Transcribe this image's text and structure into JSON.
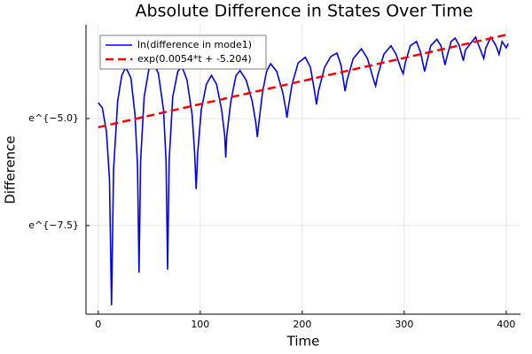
{
  "chart_data": {
    "type": "line",
    "title": "Absolute Difference in States Over Time",
    "xlabel": "Time",
    "ylabel": "Difference",
    "xlim": [
      -12,
      414
    ],
    "xticks": [
      0,
      100,
      200,
      300,
      400
    ],
    "ylim": [
      -9.57,
      -2.81
    ],
    "yticks": [
      {
        "value": -5.0,
        "label": "e^{−5.0}"
      },
      {
        "value": -7.5,
        "label": "e^{−7.5}"
      }
    ],
    "grid": true,
    "legend": "top-left",
    "series": [
      {
        "name": "ln(difference in mode1)",
        "color": "#0000ff",
        "dash": false,
        "x": [
          0,
          4,
          8,
          11,
          13,
          15,
          19,
          23,
          27,
          32,
          36,
          38.5,
          40,
          41.5,
          45,
          50,
          54,
          59,
          64,
          66.5,
          68,
          69.5,
          73,
          78,
          82,
          87,
          92,
          94.5,
          96,
          97.5,
          101,
          106,
          111,
          116,
          121,
          124,
          125,
          126,
          130,
          135,
          139,
          145,
          151,
          154.5,
          156,
          157.5,
          161,
          165,
          169,
          175,
          181,
          184,
          185,
          186,
          190,
          196,
          203,
          208,
          212,
          214,
          216,
          222,
          228,
          234,
          238,
          241,
          242,
          244,
          250,
          258,
          264,
          270,
          272,
          274,
          280,
          287,
          292,
          297,
          299,
          301,
          306,
          312,
          316,
          320,
          322,
          326,
          332,
          336,
          340,
          342,
          346,
          350,
          354,
          358,
          360,
          365,
          370,
          374,
          378,
          380,
          385,
          390,
          393,
          396,
          400,
          402
        ],
        "values": [
          -4.63,
          -4.75,
          -5.3,
          -6.4,
          -9.36,
          -6.2,
          -4.6,
          -4.0,
          -3.8,
          -4.05,
          -4.9,
          -6.1,
          -8.6,
          -6.0,
          -4.5,
          -3.8,
          -3.68,
          -3.95,
          -4.8,
          -6.0,
          -8.53,
          -6.0,
          -4.5,
          -3.9,
          -3.78,
          -4.1,
          -4.9,
          -5.8,
          -6.65,
          -5.8,
          -4.8,
          -4.2,
          -3.99,
          -4.2,
          -4.8,
          -5.4,
          -5.91,
          -5.4,
          -4.6,
          -4.0,
          -3.88,
          -4.1,
          -4.6,
          -5.1,
          -5.43,
          -5.1,
          -4.4,
          -3.9,
          -3.72,
          -3.9,
          -4.4,
          -4.8,
          -4.98,
          -4.8,
          -4.2,
          -3.7,
          -3.57,
          -3.8,
          -4.35,
          -4.67,
          -4.35,
          -3.8,
          -3.55,
          -3.47,
          -3.75,
          -4.2,
          -4.36,
          -4.1,
          -3.6,
          -3.37,
          -3.6,
          -4.1,
          -4.24,
          -4.0,
          -3.5,
          -3.3,
          -3.5,
          -3.85,
          -3.95,
          -3.7,
          -3.3,
          -3.2,
          -3.45,
          -3.9,
          -3.7,
          -3.3,
          -3.15,
          -3.3,
          -3.75,
          -3.55,
          -3.2,
          -3.12,
          -3.3,
          -3.65,
          -3.4,
          -3.25,
          -3.1,
          -3.35,
          -3.6,
          -3.35,
          -3.1,
          -3.3,
          -3.5,
          -3.2,
          -3.35,
          -3.25
        ]
      },
      {
        "name": "exp(0.0054*t + -5.204)",
        "color": "#ff0000",
        "dash": true,
        "x": [
          0,
          403
        ],
        "values": [
          -5.204,
          -3.028
        ]
      }
    ]
  }
}
